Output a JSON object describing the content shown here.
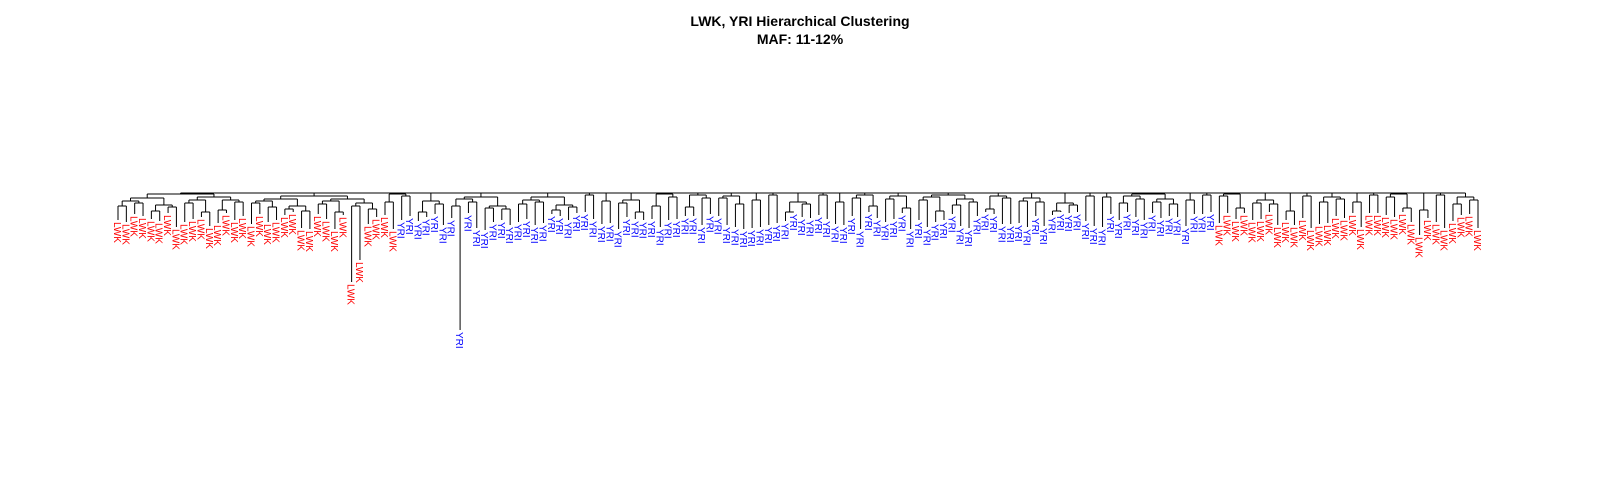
{
  "chart_data": {
    "type": "dendrogram",
    "title": "LWK, YRI Hierarchical Clustering",
    "subtitle": "MAF: 11-12%",
    "groups": [
      {
        "name": "LWK",
        "color": "#ff0000"
      },
      {
        "name": "YRI",
        "color": "#0000ff"
      }
    ],
    "leaf_sequence": [
      {
        "label": "LWK",
        "count": 34
      },
      {
        "label": "YRI",
        "count": 98
      },
      {
        "label": "LWK",
        "count": 32
      }
    ],
    "axes_shown": false,
    "grid": false,
    "legend": "none"
  }
}
